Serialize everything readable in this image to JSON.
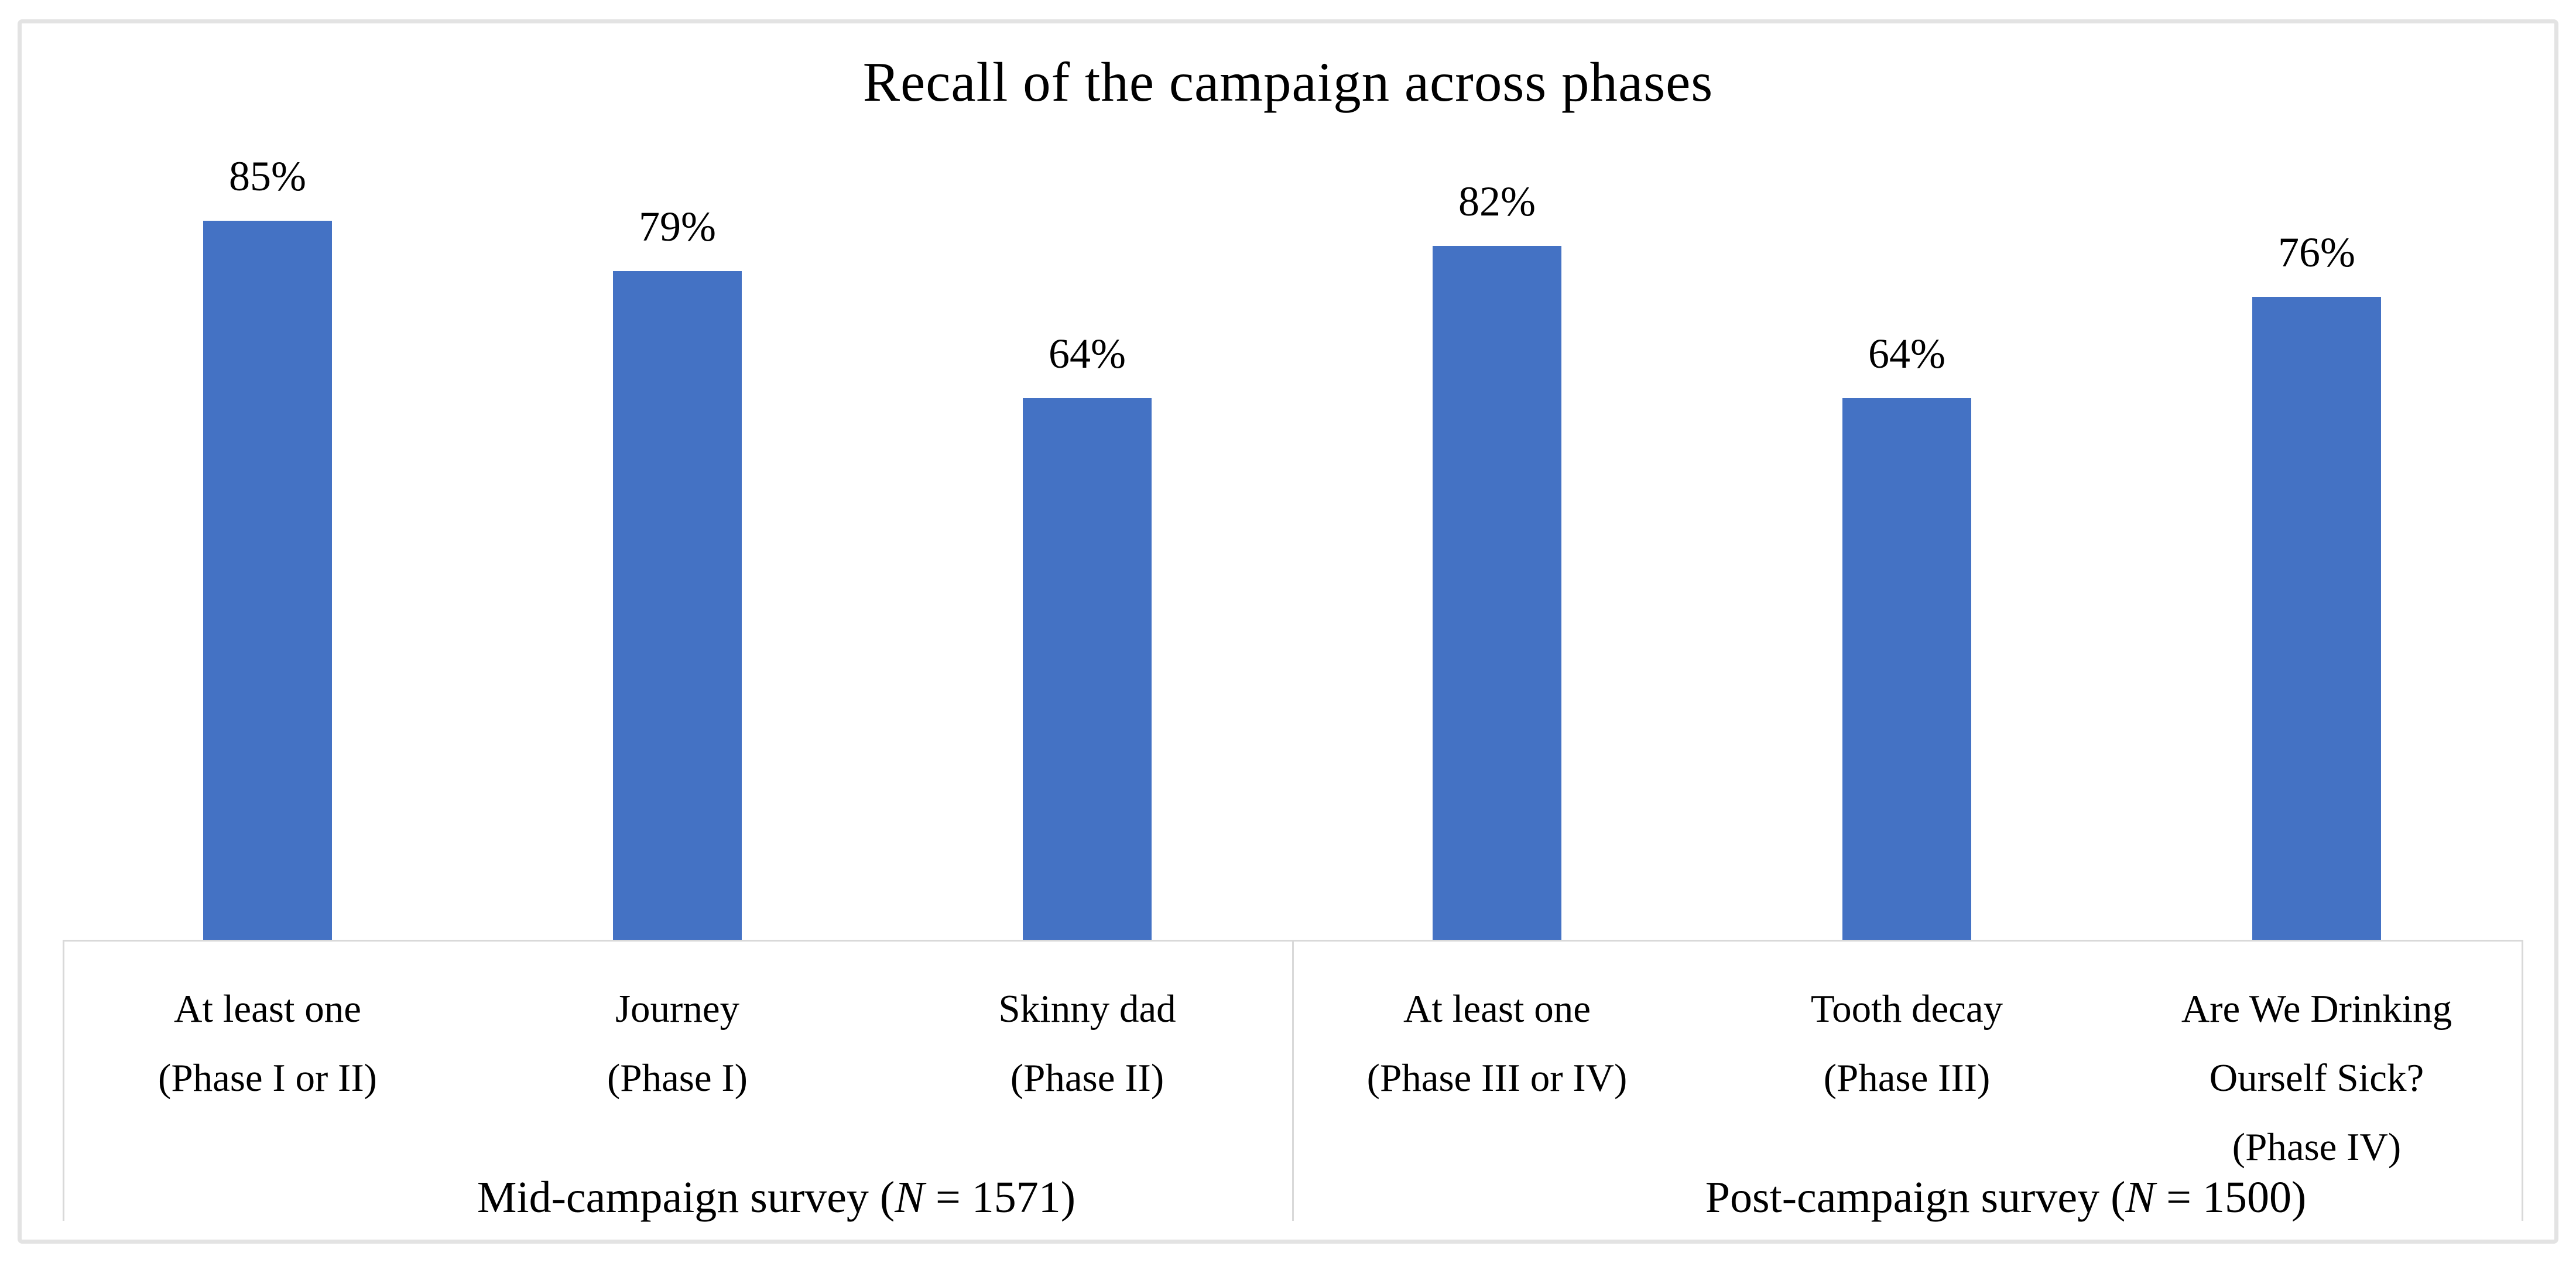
{
  "chart_data": {
    "type": "bar",
    "title": "Recall of the campaign across phases",
    "unit": "%",
    "ylim": [
      0,
      100
    ],
    "grid": false,
    "legend": "none",
    "bar_color": "#4472C4",
    "axis_line_color": "#D9D9D9",
    "frame_border_color": "#E3E3E3",
    "background": "#FFFFFF",
    "text_color": "#000000",
    "values": [
      85,
      79,
      64,
      82,
      64,
      76
    ],
    "data_labels": [
      "85%",
      "79%",
      "64%",
      "82%",
      "64%",
      "76%"
    ],
    "categories": [
      {
        "lines": [
          "At least one",
          "(Phase I or II)"
        ]
      },
      {
        "lines": [
          "Journey",
          "(Phase I)"
        ]
      },
      {
        "lines": [
          "Skinny dad",
          "(Phase II)"
        ]
      },
      {
        "lines": [
          "At least one",
          "(Phase III or IV)"
        ]
      },
      {
        "lines": [
          "Tooth decay",
          "(Phase III)"
        ]
      },
      {
        "lines": [
          "Are We Drinking",
          "Ourself Sick?",
          "(Phase IV)"
        ]
      }
    ],
    "groups": [
      {
        "prefix": "Mid-campaign survey (",
        "n": "N",
        "suffix": " = 1571)",
        "bar_indices": [
          0,
          1,
          2
        ]
      },
      {
        "prefix": "Post-campaign survey (",
        "n": "N",
        "suffix": " = 1500)",
        "bar_indices": [
          3,
          4,
          5
        ]
      }
    ]
  }
}
